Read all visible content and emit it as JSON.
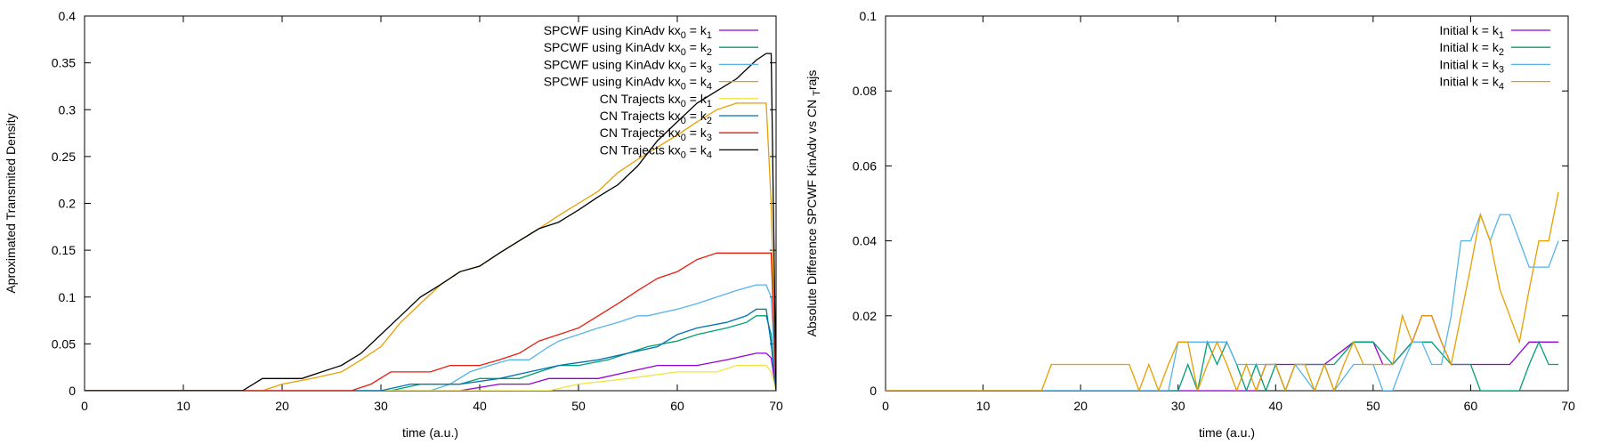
{
  "chart_data": [
    {
      "type": "line",
      "xlabel": "time (a.u.)",
      "ylabel": "Aproximated Transmited Density",
      "xlim": [
        0,
        70
      ],
      "ylim": [
        0,
        0.4
      ],
      "xticks": [
        "0",
        "10",
        "20",
        "30",
        "40",
        "50",
        "60",
        "70"
      ],
      "yticks": [
        "0",
        "0.05",
        "0.1",
        "0.15",
        "0.2",
        "0.25",
        "0.3",
        "0.35",
        "0.4"
      ],
      "grid": false,
      "legend_position": "top-right",
      "series": [
        {
          "name_prefix": "SPCWF using KinAdv kx",
          "name_sub0": "0",
          "name_mid": " = k",
          "name_sub1": "1",
          "color": "#9400d3",
          "x": [
            0,
            38,
            42,
            45,
            47,
            52,
            55,
            58,
            60,
            62,
            65,
            68,
            69,
            69.5,
            70
          ],
          "y": [
            0,
            0,
            0.007,
            0.007,
            0.013,
            0.013,
            0.02,
            0.027,
            0.027,
            0.027,
            0.033,
            0.04,
            0.04,
            0.035,
            0
          ]
        },
        {
          "name_prefix": "SPCWF using KinAdv kx",
          "name_sub0": "0",
          "name_mid": " = k",
          "name_sub1": "2",
          "color": "#009e73",
          "x": [
            0,
            31,
            34,
            38,
            40,
            44,
            46,
            48,
            50,
            53,
            55,
            57,
            60,
            62,
            65,
            67,
            68,
            69,
            69.5,
            70
          ],
          "y": [
            0,
            0,
            0.007,
            0.007,
            0.013,
            0.013,
            0.02,
            0.027,
            0.027,
            0.033,
            0.04,
            0.047,
            0.053,
            0.06,
            0.067,
            0.073,
            0.08,
            0.08,
            0.06,
            0
          ]
        },
        {
          "name_prefix": "SPCWF using KinAdv kx",
          "name_sub0": "0",
          "name_mid": " = k",
          "name_sub1": "3",
          "color": "#56b4e9",
          "x": [
            0,
            35,
            37,
            39,
            41,
            43,
            45,
            47,
            48,
            50,
            52,
            54,
            56,
            57,
            60,
            62,
            64,
            66,
            68,
            69,
            69.5,
            70
          ],
          "y": [
            0,
            0,
            0.007,
            0.02,
            0.027,
            0.033,
            0.033,
            0.047,
            0.053,
            0.06,
            0.067,
            0.073,
            0.08,
            0.08,
            0.087,
            0.093,
            0.1,
            0.107,
            0.113,
            0.113,
            0.1,
            0
          ]
        },
        {
          "name_prefix": "SPCWF using KinAdv kx",
          "name_sub0": "0",
          "name_mid": " = k",
          "name_sub1": "4",
          "color": "#e69f00",
          "x": [
            0,
            18,
            20,
            23,
            26,
            28,
            30,
            32,
            34,
            36,
            38,
            40,
            42,
            44,
            46,
            48,
            50,
            52,
            54,
            56,
            58,
            60,
            62,
            64,
            66,
            68,
            69,
            69.5,
            70
          ],
          "y": [
            0,
            0,
            0.007,
            0.013,
            0.02,
            0.033,
            0.047,
            0.073,
            0.093,
            0.113,
            0.127,
            0.133,
            0.147,
            0.16,
            0.173,
            0.187,
            0.2,
            0.213,
            0.233,
            0.247,
            0.26,
            0.273,
            0.287,
            0.3,
            0.307,
            0.307,
            0.307,
            0.2,
            0
          ]
        },
        {
          "name_prefix": "CN Trajects kx",
          "name_sub0": "0",
          "name_mid": " = k",
          "name_sub1": "1",
          "color": "#f0e442",
          "x": [
            0,
            47,
            50,
            55,
            60,
            64,
            66,
            68,
            69,
            69.5,
            70
          ],
          "y": [
            0,
            0,
            0.007,
            0.013,
            0.02,
            0.02,
            0.027,
            0.027,
            0.027,
            0.02,
            0
          ]
        },
        {
          "name_prefix": "CN Trajects kx",
          "name_sub0": "0",
          "name_mid": " = k",
          "name_sub1": "2",
          "color": "#0072b2",
          "x": [
            0,
            30,
            33,
            38,
            42,
            45,
            48,
            52,
            55,
            58,
            60,
            62,
            65,
            67,
            68,
            69,
            69.5,
            70
          ],
          "y": [
            0,
            0,
            0.007,
            0.007,
            0.013,
            0.02,
            0.027,
            0.033,
            0.04,
            0.047,
            0.06,
            0.067,
            0.073,
            0.08,
            0.087,
            0.087,
            0.05,
            0
          ]
        },
        {
          "name_prefix": "CN Trajects kx",
          "name_sub0": "0",
          "name_mid": " = k",
          "name_sub1": "3",
          "color": "#e51e10",
          "x": [
            0,
            27,
            29,
            31,
            35,
            37,
            40,
            42,
            44,
            46,
            48,
            50,
            52,
            54,
            56,
            58,
            60,
            62,
            64,
            66,
            68,
            69.5,
            70
          ],
          "y": [
            0,
            0,
            0.007,
            0.02,
            0.02,
            0.027,
            0.027,
            0.033,
            0.04,
            0.053,
            0.06,
            0.067,
            0.08,
            0.093,
            0.107,
            0.12,
            0.127,
            0.14,
            0.147,
            0.147,
            0.147,
            0.147,
            0
          ]
        },
        {
          "name_prefix": "CN Trajects kx",
          "name_sub0": "0",
          "name_mid": " = k",
          "name_sub1": "4",
          "color": "#000000",
          "x": [
            0,
            16,
            18,
            22,
            24,
            26,
            28,
            30,
            32,
            34,
            36,
            38,
            40,
            42,
            44,
            46,
            48,
            50,
            52,
            54,
            56,
            58,
            60,
            62,
            64,
            66,
            68,
            69,
            69.5,
            70
          ],
          "y": [
            0,
            0,
            0.013,
            0.013,
            0.02,
            0.027,
            0.04,
            0.06,
            0.08,
            0.1,
            0.113,
            0.127,
            0.133,
            0.147,
            0.16,
            0.173,
            0.18,
            0.193,
            0.207,
            0.22,
            0.24,
            0.267,
            0.287,
            0.307,
            0.32,
            0.333,
            0.353,
            0.36,
            0.36,
            0
          ]
        }
      ]
    },
    {
      "type": "line",
      "xlabel": "time (a.u.)",
      "ylabel_prefix": "Absolute Difference SPCWF KinAdv vs CN",
      "ylabel_sub": "T",
      "ylabel_suffix": "rajs",
      "xlim": [
        0,
        70
      ],
      "ylim": [
        0,
        0.1
      ],
      "xticks": [
        "0",
        "10",
        "20",
        "30",
        "40",
        "50",
        "60",
        "70"
      ],
      "yticks": [
        "0",
        "0.02",
        "0.04",
        "0.06",
        "0.08",
        "0.1"
      ],
      "grid": false,
      "legend_position": "top-right",
      "series": [
        {
          "name_prefix": "Initial k = k",
          "name_sub1": "1",
          "color": "#9400d3",
          "x": [
            0,
            38,
            39,
            42,
            45,
            48,
            50,
            51,
            52,
            54,
            55,
            56,
            57,
            58,
            60,
            62,
            64,
            66,
            67,
            68,
            69
          ],
          "y": [
            0,
            0,
            0.007,
            0.007,
            0.007,
            0.013,
            0.013,
            0.007,
            0.007,
            0.013,
            0.02,
            0.02,
            0.013,
            0.007,
            0.007,
            0.007,
            0.007,
            0.013,
            0.013,
            0.013,
            0.013
          ]
        },
        {
          "name_prefix": "Initial k = k",
          "name_sub1": "2",
          "color": "#009e73",
          "x": [
            0,
            30,
            31,
            32,
            33,
            34,
            35,
            36,
            37,
            38,
            39,
            40,
            41,
            42,
            44,
            46,
            48,
            50,
            52,
            54,
            56,
            58,
            60,
            61,
            62,
            64,
            65,
            66,
            67,
            68,
            69
          ],
          "y": [
            0,
            0,
            0.007,
            0,
            0.013,
            0.007,
            0.013,
            0.007,
            0,
            0.007,
            0,
            0.007,
            0,
            0.007,
            0.007,
            0.007,
            0.013,
            0.013,
            0.007,
            0.013,
            0.013,
            0.007,
            0.007,
            0,
            0,
            0,
            0,
            0.007,
            0.013,
            0.007,
            0.007
          ]
        },
        {
          "name_prefix": "Initial k = k",
          "name_sub1": "3",
          "color": "#56b4e9",
          "x": [
            0,
            29,
            30,
            31,
            32,
            34,
            35,
            36,
            38,
            40,
            41,
            42,
            44,
            45,
            46,
            48,
            50,
            51,
            52,
            53,
            54,
            55,
            56,
            57,
            58,
            59,
            60,
            61,
            62,
            63,
            64,
            66,
            68,
            69
          ],
          "y": [
            0,
            0,
            0.013,
            0.013,
            0.013,
            0.013,
            0.013,
            0.007,
            0.007,
            0.007,
            0,
            0.007,
            0,
            0.007,
            0,
            0.007,
            0.007,
            0,
            0,
            0.007,
            0.013,
            0.013,
            0.007,
            0.007,
            0.02,
            0.04,
            0.04,
            0.047,
            0.04,
            0.047,
            0.047,
            0.033,
            0.033,
            0.04
          ]
        },
        {
          "name_prefix": "Initial k = k",
          "name_sub1": "4",
          "color": "#e69f00",
          "x": [
            0,
            16,
            17,
            20,
            25,
            26,
            27,
            28,
            29,
            30,
            31,
            32,
            33,
            34,
            35,
            36,
            37,
            38,
            39,
            40,
            41,
            42,
            43,
            44,
            45,
            46,
            47,
            48,
            49,
            50,
            51,
            52,
            53,
            54,
            55,
            56,
            57,
            58,
            59,
            60,
            61,
            62,
            63,
            64,
            65,
            66,
            67,
            68,
            69
          ],
          "y": [
            0,
            0,
            0.007,
            0.007,
            0.007,
            0,
            0.007,
            0,
            0.007,
            0.013,
            0.013,
            0,
            0.007,
            0.013,
            0.007,
            0,
            0.007,
            0,
            0.007,
            0.007,
            0,
            0.007,
            0.007,
            0,
            0.007,
            0,
            0.007,
            0.013,
            0.007,
            0.007,
            0.007,
            0.007,
            0.02,
            0.013,
            0.02,
            0.02,
            0.013,
            0.007,
            0.02,
            0.033,
            0.047,
            0.04,
            0.027,
            0.02,
            0.013,
            0.027,
            0.04,
            0.04,
            0.053
          ]
        }
      ]
    }
  ]
}
